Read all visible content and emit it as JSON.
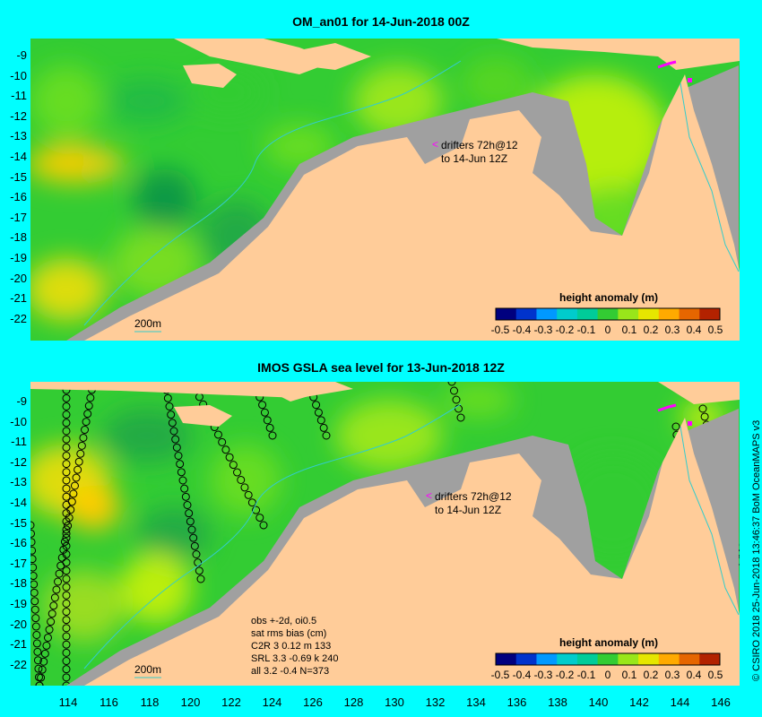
{
  "top_panel": {
    "title": "OM_an01 for 14-Jun-2018 00Z",
    "legend_title": "height anomaly (m)",
    "drifters_line1": "drifters 72h@12",
    "drifters_line2": "to 14-Jun 12Z",
    "depth_label": "200m"
  },
  "bottom_panel": {
    "title": "IMOS GSLA sea level  for 13-Jun-2018 12Z",
    "legend_title": "height anomaly (m)",
    "drifters_line1": "drifters 72h@12",
    "drifters_line2": "to 14-Jun 12Z",
    "depth_label": "200m",
    "stats": [
      "obs +-2d, oi0.5",
      "sat rms bias (cm)",
      "C2R    3 0.12 m 133",
      "SRL    3.3 -0.69 k 240",
      "all    3.2 -0.4 N=373"
    ]
  },
  "legend_ticks": [
    "-0.5",
    "-0.4",
    "-0.3",
    "-0.2",
    "-0.1",
    "0",
    "0.1",
    "0.2",
    "0.3",
    "0.4",
    "0.5"
  ],
  "legend_colors": [
    "#00007f",
    "#0033cc",
    "#0099ff",
    "#00cccc",
    "#00cc99",
    "#33cc33",
    "#99e61a",
    "#e6e600",
    "#ffaa00",
    "#e66600",
    "#b32200"
  ],
  "y_axis_labels": [
    "-9",
    "-10",
    "-11",
    "-12",
    "-13",
    "-14",
    "-15",
    "-16",
    "-17",
    "-18",
    "-19",
    "-20",
    "-21",
    "-22"
  ],
  "x_axis_labels": [
    "114",
    "116",
    "118",
    "120",
    "122",
    "124",
    "126",
    "128",
    "130",
    "132",
    "134",
    "136",
    "138",
    "140",
    "142",
    "144",
    "146"
  ],
  "credit": "© CSIRO 2018  25-Jun-2018 13:46:37 BoM OceanMAPS v3",
  "colors": {
    "land": "#ffcc99",
    "shelf": "#a0a0a0",
    "background": "#00ffff",
    "ocean_base": "#33cc33",
    "drifter": "#ff00ff"
  }
}
